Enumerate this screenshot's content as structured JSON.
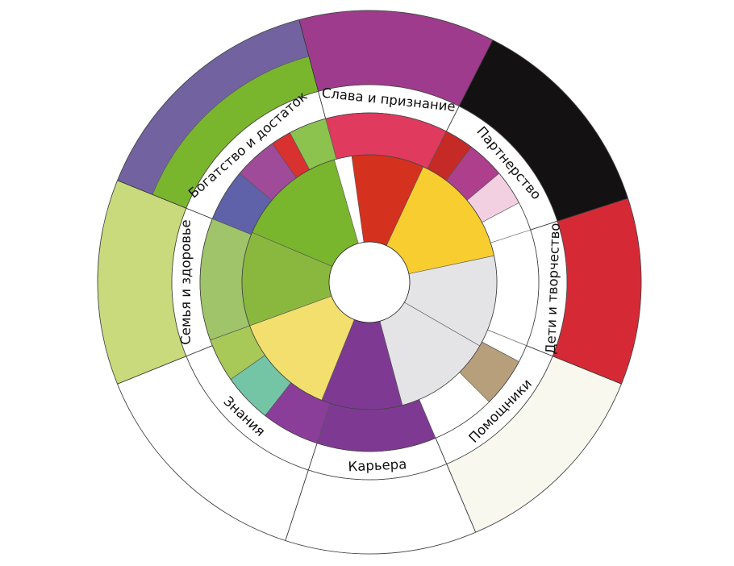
{
  "diagram": {
    "sectors": [
      {
        "name": "Слава и признание",
        "outer": "#9e3b8c",
        "inner": [
          "#e03a5e",
          "#d5311f"
        ]
      },
      {
        "name": "Партнерство",
        "outer": "#131112",
        "inner": [
          "#c52a26",
          "#ad3f8c",
          "#f3cfe2",
          "#f8cd30"
        ]
      },
      {
        "name": "Дети и творчество",
        "outer": "#d52a36",
        "inner": [
          "#ffffff",
          "#e4e4e6"
        ]
      },
      {
        "name": "Помощники",
        "outer": "#f8f8ee",
        "inner": [
          "#ffffff",
          "#b89f7c",
          "#e4e4e6"
        ]
      },
      {
        "name": "Карьера",
        "outer": "#ffffff",
        "inner": [
          "#7e3a92"
        ]
      },
      {
        "name": "Знания",
        "outer": "#ffffff",
        "inner": [
          "#8a3e99",
          "#74c4a6",
          "#a8c858",
          "#f2df6e"
        ]
      },
      {
        "name": "Семья и здоровье",
        "outer": "#c8da7c",
        "inner": [
          "#a0c46a",
          "#8ab83e"
        ]
      },
      {
        "name": "Богатство и достаток",
        "outer": "#7262a0",
        "band": "#7ab52e",
        "inner": [
          "#5f62a8",
          "#a04a9a",
          "#d93030",
          "#8cc24e",
          "#7ab52e"
        ]
      }
    ]
  }
}
